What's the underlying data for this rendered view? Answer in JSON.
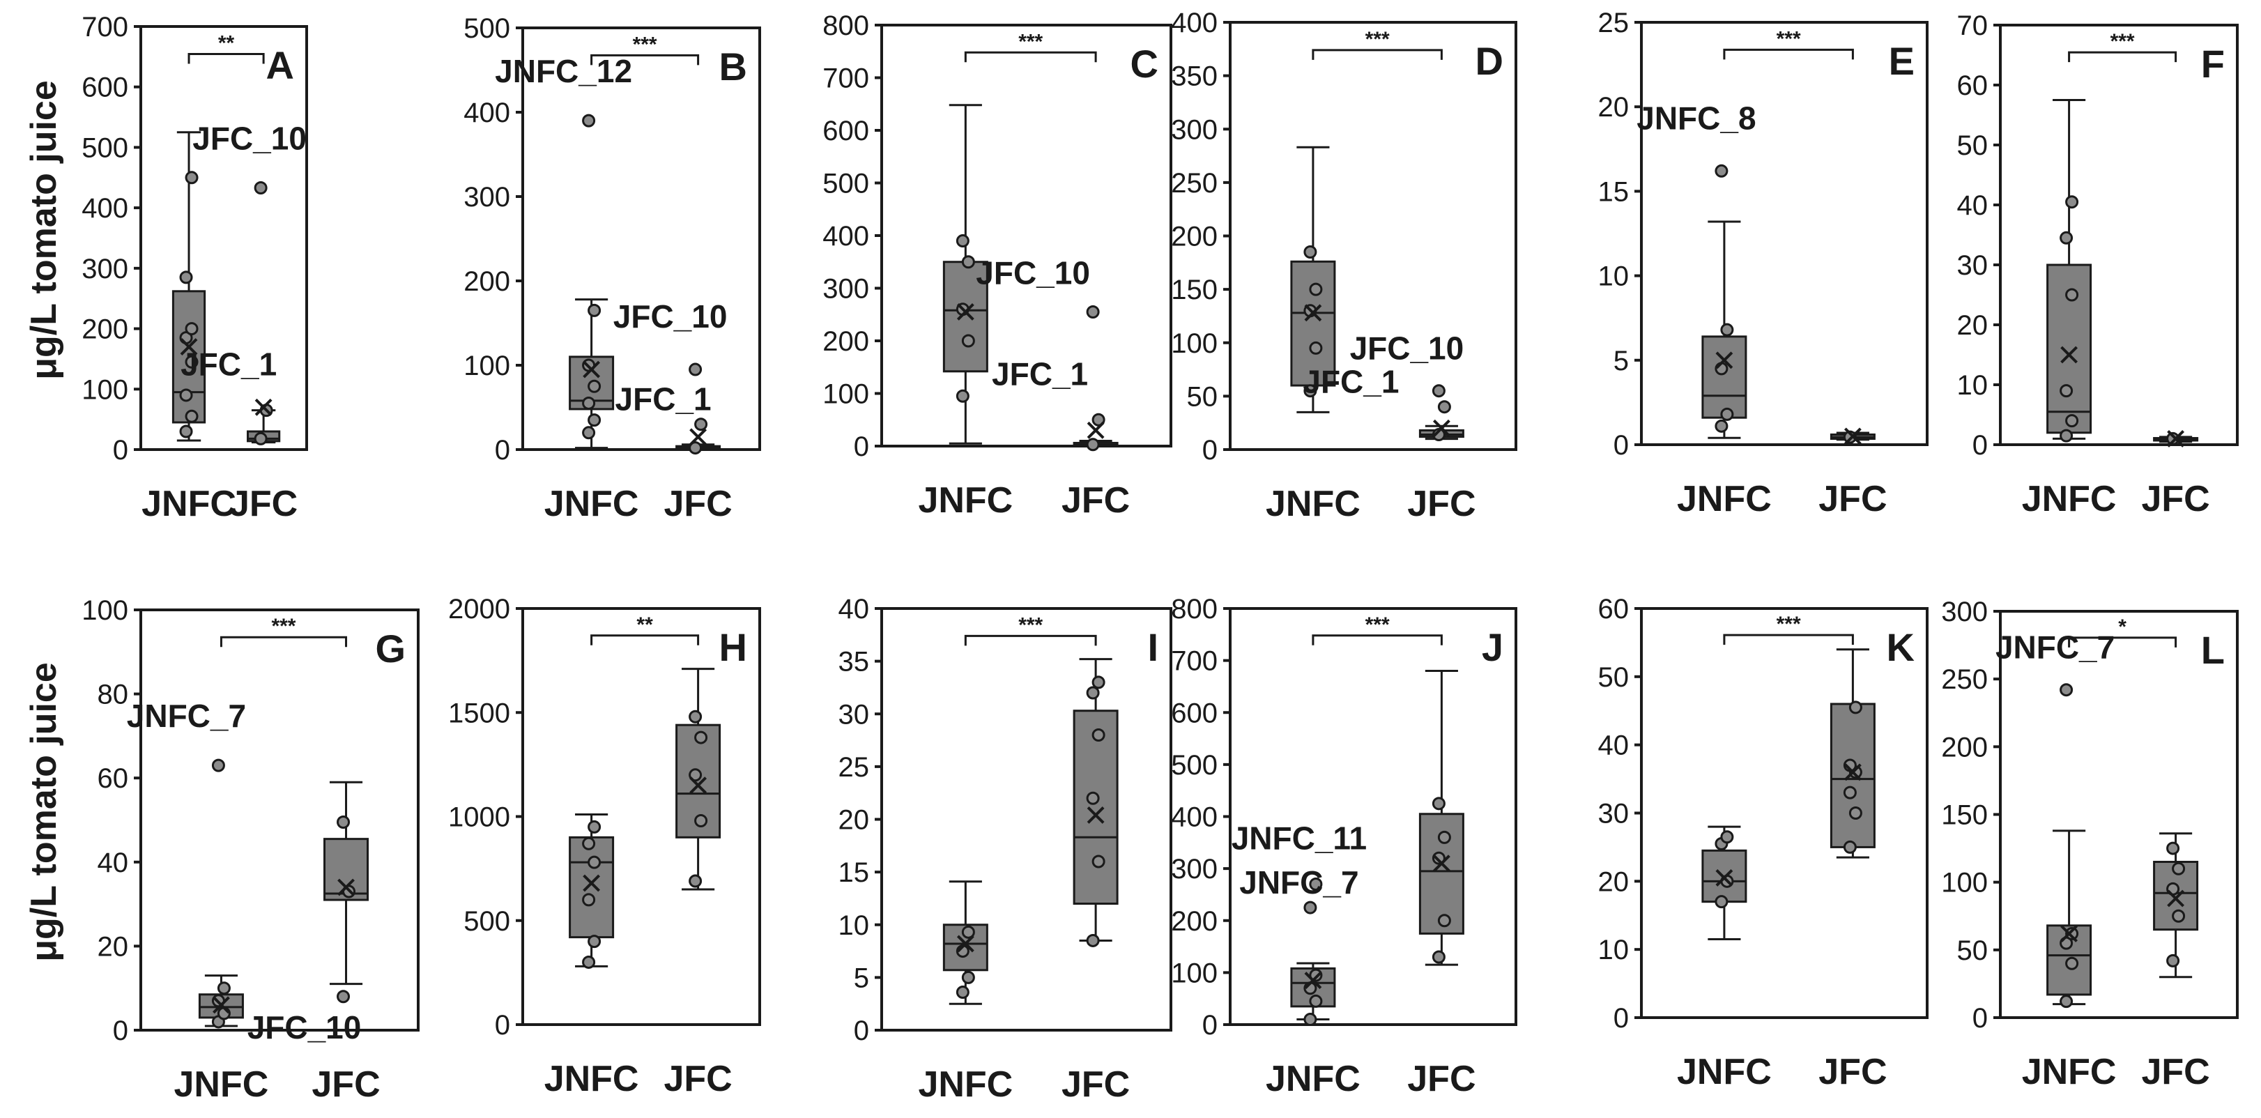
{
  "y_axis_label": "μg/L tomato juice",
  "chart_data": [
    {
      "panel": "A",
      "type": "box",
      "categories": [
        "JNFC",
        "JFC"
      ],
      "ylim": [
        0,
        700
      ],
      "yticks": [
        0,
        100,
        200,
        300,
        400,
        500,
        600,
        700
      ],
      "significance": "**",
      "groups": [
        {
          "name": "JNFC",
          "min": 15,
          "q1": 45,
          "median": 95,
          "q3": 262,
          "max": 525,
          "mean": 170,
          "points": [
            30,
            55,
            90,
            145,
            185,
            200,
            285,
            450
          ]
        },
        {
          "name": "JFC",
          "min": 12,
          "q1": 14,
          "median": 18,
          "q3": 30,
          "max": 65,
          "mean": 70,
          "points": [
            18,
            65,
            433
          ]
        }
      ],
      "annotations": [
        {
          "text": "JFC_10",
          "x": "JFC",
          "y": 433
        },
        {
          "text": "JFC_1",
          "x": "JFC",
          "y": 65
        }
      ]
    },
    {
      "panel": "B",
      "type": "box",
      "categories": [
        "JNFC",
        "JFC"
      ],
      "ylim": [
        0,
        500
      ],
      "yticks": [
        0,
        100,
        200,
        300,
        400,
        500
      ],
      "significance": "***",
      "groups": [
        {
          "name": "JNFC",
          "min": 2,
          "q1": 48,
          "median": 58,
          "q3": 110,
          "max": 178,
          "mean": 95,
          "points": [
            20,
            35,
            55,
            75,
            100,
            165,
            390
          ]
        },
        {
          "name": "JFC",
          "min": 0,
          "q1": 1,
          "median": 2,
          "q3": 4,
          "max": 6,
          "mean": 15,
          "points": [
            2,
            30,
            95
          ]
        }
      ],
      "annotations": [
        {
          "text": "JNFC_12",
          "x": "JNFC",
          "y": 390
        },
        {
          "text": "JFC_10",
          "x": "JFC",
          "y": 95
        },
        {
          "text": "JFC_1",
          "x": "JFC",
          "y": 30
        }
      ]
    },
    {
      "panel": "C",
      "type": "box",
      "categories": [
        "JNFC",
        "JFC"
      ],
      "ylim": [
        0,
        800
      ],
      "yticks": [
        0,
        100,
        200,
        300,
        400,
        500,
        600,
        700,
        800
      ],
      "significance": "***",
      "groups": [
        {
          "name": "JNFC",
          "min": 5,
          "q1": 142,
          "median": 258,
          "q3": 350,
          "max": 648,
          "mean": 255,
          "points": [
            95,
            200,
            260,
            350,
            390
          ]
        },
        {
          "name": "JFC",
          "min": 0,
          "q1": 1,
          "median": 2,
          "q3": 6,
          "max": 10,
          "mean": 30,
          "points": [
            3,
            50,
            255
          ]
        }
      ],
      "annotations": [
        {
          "text": "JFC_10",
          "x": "JFC",
          "y": 255
        },
        {
          "text": "JFC_1",
          "x": "JFC",
          "y": 50
        }
      ]
    },
    {
      "panel": "D",
      "type": "box",
      "categories": [
        "JNFC",
        "JFC"
      ],
      "ylim": [
        0,
        400
      ],
      "yticks": [
        0,
        50,
        100,
        150,
        200,
        250,
        300,
        350,
        400
      ],
      "significance": "***",
      "groups": [
        {
          "name": "JNFC",
          "min": 35,
          "q1": 60,
          "median": 128,
          "q3": 176,
          "max": 283,
          "mean": 128,
          "points": [
            55,
            95,
            130,
            150,
            185
          ]
        },
        {
          "name": "JFC",
          "min": 10,
          "q1": 12,
          "median": 14,
          "q3": 18,
          "max": 22,
          "mean": 20,
          "points": [
            14,
            40,
            55
          ]
        }
      ],
      "annotations": [
        {
          "text": "JFC_10",
          "x": "JFC",
          "y": 55
        },
        {
          "text": "JFC_1",
          "x": "JFC",
          "y": 40
        }
      ]
    },
    {
      "panel": "E",
      "type": "box",
      "categories": [
        "JNFC",
        "JFC"
      ],
      "ylim": [
        0,
        25
      ],
      "yticks": [
        0,
        5,
        10,
        15,
        20,
        25
      ],
      "significance": "***",
      "groups": [
        {
          "name": "JNFC",
          "min": 0.4,
          "q1": 1.6,
          "median": 2.9,
          "q3": 6.4,
          "max": 13.2,
          "mean": 5.0,
          "points": [
            1.1,
            1.8,
            4.5,
            6.8,
            16.2
          ]
        },
        {
          "name": "JFC",
          "min": 0.3,
          "q1": 0.35,
          "median": 0.45,
          "q3": 0.6,
          "max": 0.7,
          "mean": 0.5,
          "points": [
            0.45
          ]
        }
      ],
      "annotations": [
        {
          "text": "JNFC_8",
          "x": "JNFC",
          "y": 16.2
        }
      ]
    },
    {
      "panel": "F",
      "type": "box",
      "categories": [
        "JNFC",
        "JFC"
      ],
      "ylim": [
        0,
        70
      ],
      "yticks": [
        0,
        10,
        20,
        30,
        40,
        50,
        60,
        70
      ],
      "significance": "***",
      "groups": [
        {
          "name": "JNFC",
          "min": 1,
          "q1": 2,
          "median": 5.5,
          "q3": 30,
          "max": 57.5,
          "mean": 15,
          "points": [
            1.5,
            4,
            9,
            25,
            34.5,
            40.5
          ]
        },
        {
          "name": "JFC",
          "min": 0.5,
          "q1": 0.7,
          "median": 0.9,
          "q3": 1.1,
          "max": 1.3,
          "mean": 1,
          "points": [
            1
          ]
        }
      ],
      "annotations": []
    },
    {
      "panel": "G",
      "type": "box",
      "categories": [
        "JNFC",
        "JFC"
      ],
      "ylim": [
        0,
        100
      ],
      "yticks": [
        0,
        20,
        40,
        60,
        80,
        100
      ],
      "significance": "***",
      "groups": [
        {
          "name": "JNFC",
          "min": 1,
          "q1": 3,
          "median": 5.5,
          "q3": 8.5,
          "max": 13,
          "mean": 6,
          "points": [
            2,
            4,
            7,
            10,
            63
          ]
        },
        {
          "name": "JFC",
          "min": 11,
          "q1": 31,
          "median": 32.5,
          "q3": 45.5,
          "max": 59,
          "mean": 34,
          "points": [
            8,
            33,
            49.5
          ]
        }
      ],
      "annotations": [
        {
          "text": "JNFC_7",
          "x": "JNFC",
          "y": 63
        },
        {
          "text": "JFC_10",
          "x": "JFC",
          "y": 8
        }
      ]
    },
    {
      "panel": "H",
      "type": "box",
      "categories": [
        "JNFC",
        "JFC"
      ],
      "ylim": [
        0,
        2000
      ],
      "yticks": [
        0,
        500,
        1000,
        1500,
        2000
      ],
      "significance": "**",
      "groups": [
        {
          "name": "JNFC",
          "min": 280,
          "q1": 420,
          "median": 780,
          "q3": 900,
          "max": 1010,
          "mean": 680,
          "points": [
            300,
            400,
            600,
            780,
            870,
            950
          ]
        },
        {
          "name": "JFC",
          "min": 650,
          "q1": 900,
          "median": 1110,
          "q3": 1440,
          "max": 1710,
          "mean": 1150,
          "points": [
            690,
            980,
            1200,
            1380,
            1480
          ]
        }
      ],
      "annotations": []
    },
    {
      "panel": "I",
      "type": "box",
      "categories": [
        "JNFC",
        "JFC"
      ],
      "ylim": [
        0,
        40
      ],
      "yticks": [
        0,
        5,
        10,
        15,
        20,
        25,
        30,
        35,
        40
      ],
      "significance": "***",
      "groups": [
        {
          "name": "JNFC",
          "min": 2.5,
          "q1": 5.7,
          "median": 8.2,
          "q3": 10,
          "max": 14.1,
          "mean": 8.2,
          "points": [
            3.6,
            5,
            7.5,
            9.3
          ]
        },
        {
          "name": "JFC",
          "min": 8.5,
          "q1": 12,
          "median": 18.3,
          "q3": 30.3,
          "max": 35.2,
          "mean": 20.4,
          "points": [
            8.5,
            16,
            22,
            28,
            32,
            33
          ]
        }
      ],
      "annotations": []
    },
    {
      "panel": "J",
      "type": "box",
      "categories": [
        "JNFC",
        "JFC"
      ],
      "ylim": [
        0,
        800
      ],
      "yticks": [
        0,
        100,
        200,
        300,
        400,
        500,
        600,
        700,
        800
      ],
      "significance": "***",
      "groups": [
        {
          "name": "JNFC",
          "min": 10,
          "q1": 35,
          "median": 80,
          "q3": 108,
          "max": 118,
          "mean": 85,
          "points": [
            10,
            45,
            70,
            95,
            225,
            270
          ]
        },
        {
          "name": "JFC",
          "min": 115,
          "q1": 175,
          "median": 295,
          "q3": 405,
          "max": 680,
          "mean": 310,
          "points": [
            130,
            200,
            320,
            360,
            425
          ]
        }
      ],
      "annotations": [
        {
          "text": "JNFC_11",
          "x": "JNFC",
          "y": 270
        },
        {
          "text": "JNFC_7",
          "x": "JNFC",
          "y": 225
        }
      ]
    },
    {
      "panel": "K",
      "type": "box",
      "categories": [
        "JNFC",
        "JFC"
      ],
      "ylim": [
        0,
        60
      ],
      "yticks": [
        0,
        10,
        20,
        30,
        40,
        50,
        60
      ],
      "significance": "***",
      "groups": [
        {
          "name": "JNFC",
          "min": 11.5,
          "q1": 17,
          "median": 20,
          "q3": 24.5,
          "max": 28,
          "mean": 20.5,
          "points": [
            17,
            20,
            25.5,
            26.5
          ]
        },
        {
          "name": "JFC",
          "min": 23.5,
          "q1": 25,
          "median": 35,
          "q3": 46,
          "max": 54,
          "mean": 36,
          "points": [
            25,
            30,
            33,
            36,
            37,
            45.5
          ]
        }
      ],
      "annotations": []
    },
    {
      "panel": "L",
      "type": "box",
      "categories": [
        "JNFC",
        "JFC"
      ],
      "ylim": [
        0,
        300
      ],
      "yticks": [
        0,
        50,
        100,
        150,
        200,
        250,
        300
      ],
      "significance": "*",
      "groups": [
        {
          "name": "JNFC",
          "min": 10,
          "q1": 17,
          "median": 46,
          "q3": 68,
          "max": 138,
          "mean": 62,
          "points": [
            12,
            40,
            55,
            62,
            242
          ]
        },
        {
          "name": "JFC",
          "min": 30,
          "q1": 65,
          "median": 92,
          "q3": 115,
          "max": 136,
          "mean": 88,
          "points": [
            42,
            75,
            95,
            110,
            125
          ]
        }
      ],
      "annotations": [
        {
          "text": "JNFC_7",
          "x": "JNFC",
          "y": 242
        }
      ]
    }
  ]
}
